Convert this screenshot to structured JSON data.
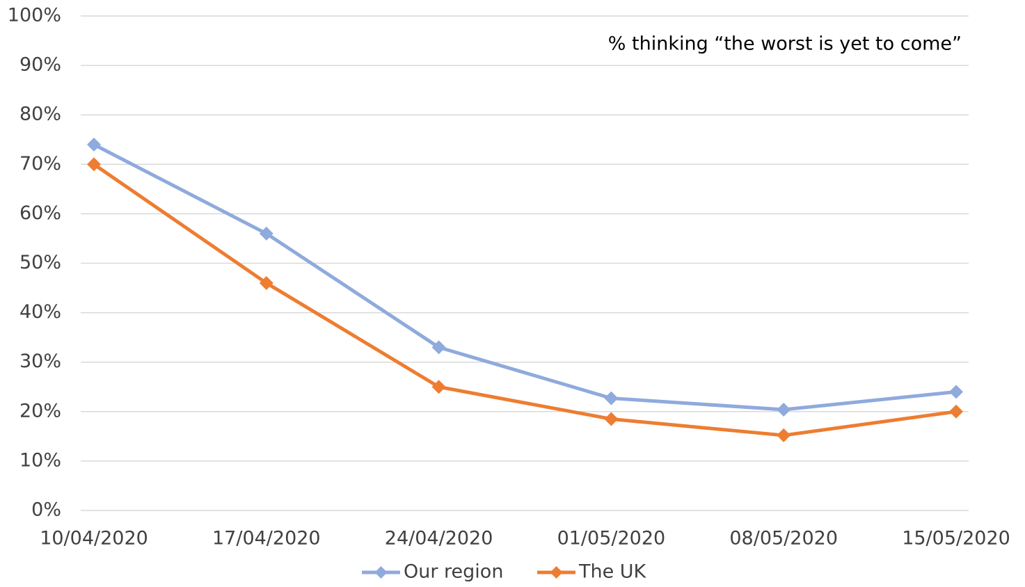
{
  "chart_data": {
    "type": "line",
    "annotation": "% thinking “the worst is yet to come”",
    "categories": [
      "10/04/2020",
      "17/04/2020",
      "24/04/2020",
      "01/05/2020",
      "08/05/2020",
      "15/05/2020"
    ],
    "series": [
      {
        "name": "Our region",
        "color": "#8faadc",
        "values": [
          74,
          56,
          33,
          22.7,
          20.4,
          24
        ]
      },
      {
        "name": "The UK",
        "color": "#ed7d31",
        "values": [
          70,
          46,
          25,
          18.5,
          15.2,
          20
        ]
      }
    ],
    "ylim": [
      0,
      100
    ],
    "yticks": [
      {
        "value": 0,
        "label": "0%"
      },
      {
        "value": 10,
        "label": "10%"
      },
      {
        "value": 20,
        "label": "20%"
      },
      {
        "value": 30,
        "label": "30%"
      },
      {
        "value": 40,
        "label": "40%"
      },
      {
        "value": 50,
        "label": "50%"
      },
      {
        "value": 60,
        "label": "60%"
      },
      {
        "value": 70,
        "label": "70%"
      },
      {
        "value": 80,
        "label": "80%"
      },
      {
        "value": 90,
        "label": "90%"
      },
      {
        "value": 100,
        "label": "100%"
      }
    ],
    "grid": true,
    "legend": "bottom"
  }
}
